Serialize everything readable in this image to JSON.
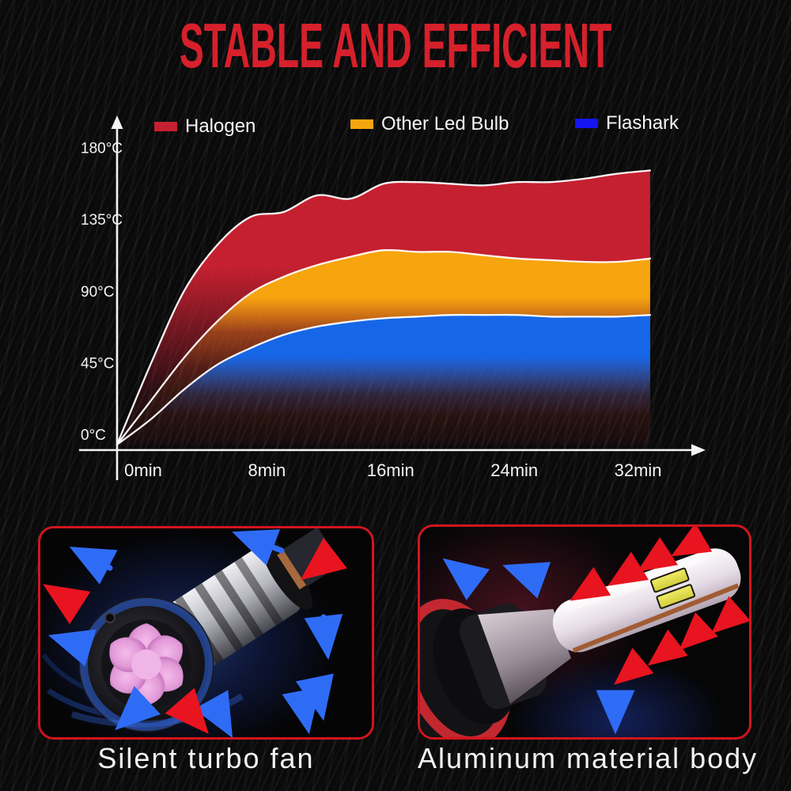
{
  "title": "STABLE AND EFFICIENT",
  "colors": {
    "accent_red": "#d2151c",
    "title_red": "#d6202b",
    "text_light": "#f2f2f2",
    "axis_white": "#f4f4f4",
    "arrow_blue": "#2f6cf6",
    "arrow_red": "#e8141f",
    "fan_pink": "#e8a6dc",
    "chart_red": "#c52030",
    "chart_orange": "#f7a50e",
    "chart_blue": "#1667e8",
    "legend_blue": "#1414f0"
  },
  "legend": [
    {
      "label": "Halogen",
      "color": "#c52030"
    },
    {
      "label": "Other Led Bulb",
      "color": "#f7a50e"
    },
    {
      "label": "Flashark",
      "color": "#1414f0"
    }
  ],
  "chart_data": {
    "type": "area",
    "title": "",
    "xlabel": "",
    "ylabel": "",
    "x_unit": "min",
    "y_unit": "°C",
    "xlim": [
      0,
      32
    ],
    "ylim": [
      0,
      180
    ],
    "grid": false,
    "legend_position": "top",
    "x_minutes": [
      0,
      2,
      4,
      6,
      8,
      10,
      12,
      14,
      16,
      18,
      20,
      22,
      24,
      26,
      28,
      30,
      32
    ],
    "series": [
      {
        "name": "Halogen",
        "color": "#c52030",
        "values": [
          0,
          48,
          92,
          120,
          137,
          140,
          150,
          148,
          157,
          158,
          157,
          156,
          158,
          158,
          160,
          163,
          165
        ]
      },
      {
        "name": "Other Led Bulb",
        "color": "#f7a50e",
        "values": [
          0,
          26,
          52,
          74,
          91,
          101,
          108,
          113,
          117,
          116,
          116,
          114,
          112,
          111,
          110,
          110,
          112
        ]
      },
      {
        "name": "Flashark",
        "color": "#1667e8",
        "values": [
          0,
          15,
          33,
          48,
          58,
          66,
          71,
          74,
          76,
          77,
          78,
          78,
          78,
          77,
          77,
          77,
          78
        ]
      }
    ],
    "x_tick_labels": [
      "0min",
      "8min",
      "16min",
      "24min",
      "32min"
    ],
    "y_tick_labels": [
      "0°C",
      "45°C",
      "90°C",
      "135°C",
      "180°C"
    ]
  },
  "panels": [
    {
      "caption": "Silent turbo fan"
    },
    {
      "caption": "Aluminum material body"
    }
  ]
}
